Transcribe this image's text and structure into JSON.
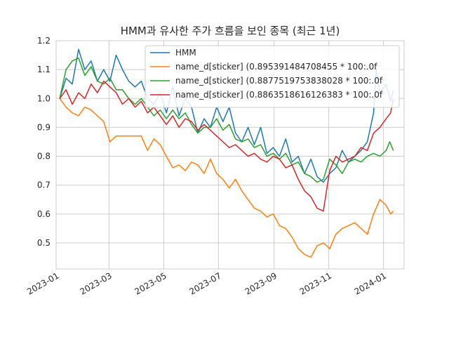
{
  "chart_data": {
    "type": "line",
    "title": "HMM과 유사한 주가 흐름을 보인 종목 (최근 1년)",
    "xlabel": "",
    "ylabel": "",
    "xlim": [
      "2023-01-01",
      "2024-01-24"
    ],
    "ylim": [
      0.41,
      1.2
    ],
    "grid": true,
    "legend_position": "top-right",
    "x_ticks": [
      {
        "date": "2023-01-01",
        "label": "2023-01"
      },
      {
        "date": "2023-03-01",
        "label": "2023-03"
      },
      {
        "date": "2023-05-01",
        "label": "2023-05"
      },
      {
        "date": "2023-07-01",
        "label": "2023-07"
      },
      {
        "date": "2023-09-01",
        "label": "2023-09"
      },
      {
        "date": "2023-11-01",
        "label": "2023-11"
      },
      {
        "date": "2024-01-01",
        "label": "2024-01"
      }
    ],
    "y_ticks": [
      0.5,
      0.6,
      0.7,
      0.8,
      0.9,
      1.0,
      1.1,
      1.2
    ],
    "y_tick_labels": [
      "0.5",
      "0.6",
      "0.7",
      "0.8",
      "0.9",
      "1.0",
      "1.1",
      "1.2"
    ],
    "series": [
      {
        "name": "HMM",
        "color": "#1f77b4",
        "points": [
          [
            "2023-01-05",
            1.0
          ],
          [
            "2023-01-12",
            1.07
          ],
          [
            "2023-01-19",
            1.05
          ],
          [
            "2023-01-26",
            1.17
          ],
          [
            "2023-02-02",
            1.1
          ],
          [
            "2023-02-09",
            1.13
          ],
          [
            "2023-02-16",
            1.06
          ],
          [
            "2023-02-23",
            1.1
          ],
          [
            "2023-03-02",
            1.06
          ],
          [
            "2023-03-09",
            1.15
          ],
          [
            "2023-03-16",
            1.1
          ],
          [
            "2023-03-23",
            1.06
          ],
          [
            "2023-03-30",
            1.04
          ],
          [
            "2023-04-06",
            1.06
          ],
          [
            "2023-04-13",
            1.0
          ],
          [
            "2023-04-20",
            0.98
          ],
          [
            "2023-04-27",
            1.02
          ],
          [
            "2023-05-04",
            0.95
          ],
          [
            "2023-05-11",
            1.04
          ],
          [
            "2023-05-18",
            0.94
          ],
          [
            "2023-05-25",
            1.0
          ],
          [
            "2023-06-01",
            0.97
          ],
          [
            "2023-06-08",
            0.88
          ],
          [
            "2023-06-15",
            0.93
          ],
          [
            "2023-06-22",
            0.9
          ],
          [
            "2023-06-29",
            0.97
          ],
          [
            "2023-07-06",
            0.92
          ],
          [
            "2023-07-13",
            0.97
          ],
          [
            "2023-07-20",
            0.88
          ],
          [
            "2023-07-27",
            0.85
          ],
          [
            "2023-08-03",
            0.9
          ],
          [
            "2023-08-10",
            0.84
          ],
          [
            "2023-08-17",
            0.9
          ],
          [
            "2023-08-24",
            0.81
          ],
          [
            "2023-08-31",
            0.83
          ],
          [
            "2023-09-07",
            0.8
          ],
          [
            "2023-09-14",
            0.86
          ],
          [
            "2023-09-21",
            0.78
          ],
          [
            "2023-09-28",
            0.8
          ],
          [
            "2023-10-05",
            0.74
          ],
          [
            "2023-10-12",
            0.79
          ],
          [
            "2023-10-19",
            0.73
          ],
          [
            "2023-10-26",
            0.71
          ],
          [
            "2023-11-02",
            0.74
          ],
          [
            "2023-11-09",
            0.76
          ],
          [
            "2023-11-16",
            0.82
          ],
          [
            "2023-11-23",
            0.78
          ],
          [
            "2023-11-30",
            0.8
          ],
          [
            "2023-12-07",
            0.82
          ],
          [
            "2023-12-14",
            0.85
          ],
          [
            "2023-12-21",
            0.95
          ],
          [
            "2023-12-24",
            1.1
          ],
          [
            "2023-12-28",
            1.02
          ],
          [
            "2024-01-04",
            1.05
          ],
          [
            "2024-01-09",
            0.99
          ],
          [
            "2024-01-12",
            1.03
          ]
        ]
      },
      {
        "name": "name_d[sticker]  (0.895391484708455 * 100:.0f",
        "color": "#ff7f0e",
        "points": [
          [
            "2023-01-05",
            1.0
          ],
          [
            "2023-01-12",
            0.97
          ],
          [
            "2023-01-19",
            0.95
          ],
          [
            "2023-01-26",
            0.94
          ],
          [
            "2023-02-02",
            0.97
          ],
          [
            "2023-02-09",
            0.96
          ],
          [
            "2023-02-16",
            0.94
          ],
          [
            "2023-02-23",
            0.92
          ],
          [
            "2023-03-02",
            0.85
          ],
          [
            "2023-03-09",
            0.87
          ],
          [
            "2023-03-16",
            0.87
          ],
          [
            "2023-03-23",
            0.87
          ],
          [
            "2023-03-30",
            0.87
          ],
          [
            "2023-04-06",
            0.87
          ],
          [
            "2023-04-13",
            0.82
          ],
          [
            "2023-04-20",
            0.86
          ],
          [
            "2023-04-27",
            0.84
          ],
          [
            "2023-05-04",
            0.8
          ],
          [
            "2023-05-11",
            0.76
          ],
          [
            "2023-05-18",
            0.77
          ],
          [
            "2023-05-25",
            0.75
          ],
          [
            "2023-06-01",
            0.78
          ],
          [
            "2023-06-08",
            0.77
          ],
          [
            "2023-06-15",
            0.74
          ],
          [
            "2023-06-22",
            0.79
          ],
          [
            "2023-06-29",
            0.74
          ],
          [
            "2023-07-06",
            0.72
          ],
          [
            "2023-07-13",
            0.69
          ],
          [
            "2023-07-20",
            0.72
          ],
          [
            "2023-07-27",
            0.68
          ],
          [
            "2023-08-03",
            0.65
          ],
          [
            "2023-08-10",
            0.62
          ],
          [
            "2023-08-17",
            0.61
          ],
          [
            "2023-08-24",
            0.59
          ],
          [
            "2023-08-31",
            0.6
          ],
          [
            "2023-09-07",
            0.56
          ],
          [
            "2023-09-14",
            0.55
          ],
          [
            "2023-09-21",
            0.52
          ],
          [
            "2023-09-28",
            0.48
          ],
          [
            "2023-10-05",
            0.46
          ],
          [
            "2023-10-12",
            0.45
          ],
          [
            "2023-10-19",
            0.49
          ],
          [
            "2023-10-26",
            0.5
          ],
          [
            "2023-11-02",
            0.48
          ],
          [
            "2023-11-09",
            0.53
          ],
          [
            "2023-11-16",
            0.55
          ],
          [
            "2023-11-23",
            0.56
          ],
          [
            "2023-11-30",
            0.57
          ],
          [
            "2023-12-07",
            0.55
          ],
          [
            "2023-12-14",
            0.53
          ],
          [
            "2023-12-21",
            0.6
          ],
          [
            "2023-12-28",
            0.65
          ],
          [
            "2024-01-04",
            0.63
          ],
          [
            "2024-01-09",
            0.6
          ],
          [
            "2024-01-12",
            0.61
          ]
        ]
      },
      {
        "name": "name_d[sticker]  (0.8877519753838028 * 100:.0f",
        "color": "#2ca02c",
        "points": [
          [
            "2023-01-05",
            1.0
          ],
          [
            "2023-01-12",
            1.1
          ],
          [
            "2023-01-19",
            1.13
          ],
          [
            "2023-01-26",
            1.14
          ],
          [
            "2023-02-02",
            1.08
          ],
          [
            "2023-02-09",
            1.11
          ],
          [
            "2023-02-16",
            1.06
          ],
          [
            "2023-02-23",
            1.05
          ],
          [
            "2023-03-02",
            1.07
          ],
          [
            "2023-03-09",
            1.03
          ],
          [
            "2023-03-16",
            1.03
          ],
          [
            "2023-03-23",
            1.0
          ],
          [
            "2023-03-30",
            0.98
          ],
          [
            "2023-04-06",
            1.0
          ],
          [
            "2023-04-13",
            0.97
          ],
          [
            "2023-04-20",
            0.94
          ],
          [
            "2023-04-27",
            0.96
          ],
          [
            "2023-05-04",
            0.93
          ],
          [
            "2023-05-11",
            0.96
          ],
          [
            "2023-05-18",
            0.93
          ],
          [
            "2023-05-25",
            0.95
          ],
          [
            "2023-06-01",
            0.91
          ],
          [
            "2023-06-08",
            0.88
          ],
          [
            "2023-06-15",
            0.9
          ],
          [
            "2023-06-22",
            0.9
          ],
          [
            "2023-06-29",
            0.93
          ],
          [
            "2023-07-06",
            0.89
          ],
          [
            "2023-07-13",
            0.91
          ],
          [
            "2023-07-20",
            0.86
          ],
          [
            "2023-07-27",
            0.85
          ],
          [
            "2023-08-03",
            0.86
          ],
          [
            "2023-08-10",
            0.83
          ],
          [
            "2023-08-17",
            0.84
          ],
          [
            "2023-08-24",
            0.8
          ],
          [
            "2023-08-31",
            0.81
          ],
          [
            "2023-09-07",
            0.79
          ],
          [
            "2023-09-14",
            0.81
          ],
          [
            "2023-09-21",
            0.77
          ],
          [
            "2023-09-28",
            0.78
          ],
          [
            "2023-10-05",
            0.74
          ],
          [
            "2023-10-12",
            0.73
          ],
          [
            "2023-10-19",
            0.71
          ],
          [
            "2023-10-26",
            0.72
          ],
          [
            "2023-11-02",
            0.79
          ],
          [
            "2023-11-09",
            0.77
          ],
          [
            "2023-11-16",
            0.74
          ],
          [
            "2023-11-23",
            0.78
          ],
          [
            "2023-11-30",
            0.79
          ],
          [
            "2023-12-07",
            0.78
          ],
          [
            "2023-12-14",
            0.8
          ],
          [
            "2023-12-21",
            0.81
          ],
          [
            "2023-12-28",
            0.8
          ],
          [
            "2024-01-04",
            0.82
          ],
          [
            "2024-01-08",
            0.85
          ],
          [
            "2024-01-12",
            0.82
          ]
        ]
      },
      {
        "name": "name_d[sticker]  (0.8863518616126383 * 100:.0f",
        "color": "#d62728",
        "points": [
          [
            "2023-01-05",
            1.0
          ],
          [
            "2023-01-12",
            1.03
          ],
          [
            "2023-01-19",
            0.98
          ],
          [
            "2023-01-26",
            1.02
          ],
          [
            "2023-02-02",
            1.0
          ],
          [
            "2023-02-09",
            1.05
          ],
          [
            "2023-02-16",
            1.02
          ],
          [
            "2023-02-23",
            1.06
          ],
          [
            "2023-03-02",
            1.04
          ],
          [
            "2023-03-09",
            1.02
          ],
          [
            "2023-03-16",
            0.98
          ],
          [
            "2023-03-23",
            1.0
          ],
          [
            "2023-03-30",
            0.97
          ],
          [
            "2023-04-06",
            0.99
          ],
          [
            "2023-04-13",
            0.95
          ],
          [
            "2023-04-20",
            0.97
          ],
          [
            "2023-04-27",
            0.94
          ],
          [
            "2023-05-04",
            0.91
          ],
          [
            "2023-05-11",
            0.94
          ],
          [
            "2023-05-18",
            0.9
          ],
          [
            "2023-05-25",
            0.93
          ],
          [
            "2023-06-01",
            0.92
          ],
          [
            "2023-06-08",
            0.89
          ],
          [
            "2023-06-15",
            0.91
          ],
          [
            "2023-06-22",
            0.89
          ],
          [
            "2023-06-29",
            0.87
          ],
          [
            "2023-07-06",
            0.85
          ],
          [
            "2023-07-13",
            0.83
          ],
          [
            "2023-07-20",
            0.84
          ],
          [
            "2023-07-27",
            0.82
          ],
          [
            "2023-08-03",
            0.8
          ],
          [
            "2023-08-10",
            0.81
          ],
          [
            "2023-08-17",
            0.79
          ],
          [
            "2023-08-24",
            0.78
          ],
          [
            "2023-08-31",
            0.8
          ],
          [
            "2023-09-07",
            0.79
          ],
          [
            "2023-09-14",
            0.76
          ],
          [
            "2023-09-21",
            0.77
          ],
          [
            "2023-09-28",
            0.72
          ],
          [
            "2023-10-05",
            0.68
          ],
          [
            "2023-10-12",
            0.66
          ],
          [
            "2023-10-19",
            0.62
          ],
          [
            "2023-10-26",
            0.61
          ],
          [
            "2023-11-02",
            0.75
          ],
          [
            "2023-11-09",
            0.8
          ],
          [
            "2023-11-16",
            0.78
          ],
          [
            "2023-11-23",
            0.79
          ],
          [
            "2023-11-30",
            0.8
          ],
          [
            "2023-12-07",
            0.83
          ],
          [
            "2023-12-14",
            0.82
          ],
          [
            "2023-12-21",
            0.88
          ],
          [
            "2023-12-28",
            0.9
          ],
          [
            "2024-01-04",
            0.93
          ],
          [
            "2024-01-09",
            0.95
          ],
          [
            "2024-01-12",
            1.0
          ]
        ]
      }
    ]
  }
}
